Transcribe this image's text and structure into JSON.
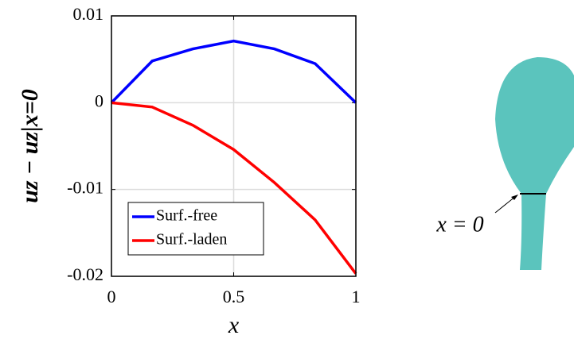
{
  "chart_data": {
    "type": "line",
    "x_label": "x",
    "y_label": "uz − uz|x=0",
    "x": [
      0,
      0.1667,
      0.3333,
      0.5,
      0.6667,
      0.8333,
      1
    ],
    "series": [
      {
        "name": "Surf.-free",
        "color": "#0000ff",
        "values": [
          0,
          0.0048,
          0.0062,
          0.0071,
          0.0062,
          0.0045,
          0
        ]
      },
      {
        "name": "Surf.-laden",
        "color": "#ff0000",
        "values": [
          0,
          -0.0005,
          -0.0026,
          -0.0054,
          -0.0092,
          -0.0135,
          -0.0197
        ]
      }
    ],
    "xlim": [
      0,
      1
    ],
    "xticks": [
      0,
      0.5,
      1
    ],
    "ylim": [
      -0.02,
      0.01
    ],
    "yticks": [
      -0.02,
      -0.01,
      0,
      0.01
    ],
    "grid": true,
    "legend": "lower left",
    "annotation": "x = 0"
  }
}
